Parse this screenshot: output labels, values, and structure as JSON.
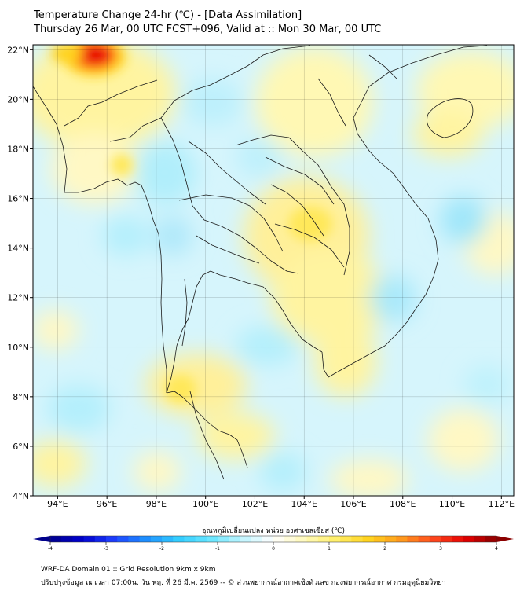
{
  "title_line1": "Temperature Change 24-hr (℃) - [Data Assimilation]",
  "title_line2": "Thursday 26 Mar, 00 UTC FCST+096, Valid at :: Mon 30 Mar, 00 UTC",
  "map": {
    "lon_range": [
      93,
      112.5
    ],
    "lat_range": [
      4,
      22.2
    ],
    "lon_ticks": [
      {
        "value": 94,
        "label": "94°E"
      },
      {
        "value": 96,
        "label": "96°E"
      },
      {
        "value": 98,
        "label": "98°E"
      },
      {
        "value": 100,
        "label": "100°E"
      },
      {
        "value": 102,
        "label": "102°E"
      },
      {
        "value": 104,
        "label": "104°E"
      },
      {
        "value": 106,
        "label": "106°E"
      },
      {
        "value": 108,
        "label": "108°E"
      },
      {
        "value": 110,
        "label": "110°E"
      },
      {
        "value": 112,
        "label": "112°E"
      }
    ],
    "lat_ticks": [
      {
        "value": 4,
        "label": "4°N"
      },
      {
        "value": 6,
        "label": "6°N"
      },
      {
        "value": 8,
        "label": "8°N"
      },
      {
        "value": 10,
        "label": "10°N"
      },
      {
        "value": 12,
        "label": "12°N"
      },
      {
        "value": 14,
        "label": "14°N"
      },
      {
        "value": 16,
        "label": "16°N"
      },
      {
        "value": 18,
        "label": "18°N"
      },
      {
        "value": 20,
        "label": "20°N"
      },
      {
        "value": 22,
        "label": "22°N"
      }
    ]
  },
  "colorbar": {
    "label": "อุณหภูมิเปลี่ยนแปลง หน่วย องศาเซลเซียส (℃)",
    "min": -4,
    "max": 4,
    "ticks": [
      {
        "value": -4,
        "label": "-4"
      },
      {
        "value": -3,
        "label": "-3"
      },
      {
        "value": -2,
        "label": "-2"
      },
      {
        "value": -1,
        "label": "-1"
      },
      {
        "value": 0,
        "label": "0"
      },
      {
        "value": 1,
        "label": "1"
      },
      {
        "value": 2,
        "label": "2"
      },
      {
        "value": 3,
        "label": "3"
      },
      {
        "value": 4,
        "label": "4"
      }
    ],
    "colors": [
      "#00008b",
      "#0000cd",
      "#1e40ff",
      "#1e90ff",
      "#33ccff",
      "#66e6ff",
      "#bff5ff",
      "#ffffff",
      "#fff9b8",
      "#ffee66",
      "#ffd21e",
      "#ff9a1e",
      "#ff4a1e",
      "#e60000",
      "#8b0000"
    ]
  },
  "footer_line1": "WRF-DA Domain 01 :: Grid Resolution 9km x 9km",
  "footer_line2": "ปรับปรุงข้อมูล ณ เวลา 07:00น. วัน พฤ. ที่ 26 มี.ค. 2569 -- © ส่วนพยากรณ์อากาศเชิงตัวเลข กองพยากรณ์อากาศ กรมอุตุนิยมวิทยา"
}
